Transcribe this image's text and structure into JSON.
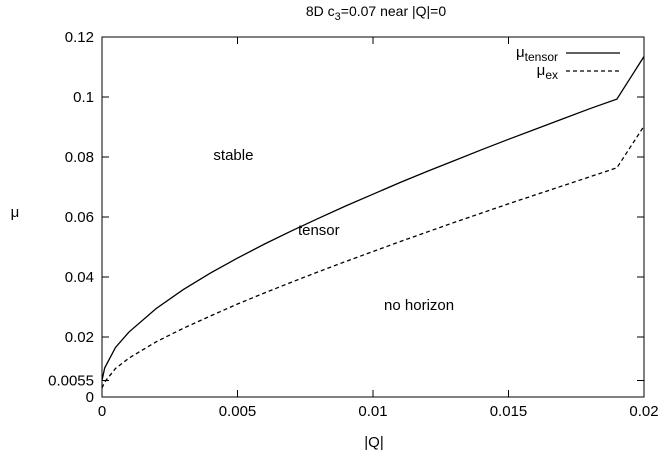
{
  "chart_data": {
    "type": "line",
    "title_parts": {
      "pre": "8D c",
      "sub": "3",
      "post": "=0.07 near |Q|=0"
    },
    "xlabel": "|Q|",
    "ylabel": "μ",
    "xlim": [
      0,
      0.02
    ],
    "ylim": [
      0,
      0.12
    ],
    "x_ticks": [
      {
        "value": 0,
        "label": "0"
      },
      {
        "value": 0.005,
        "label": "0.005"
      },
      {
        "value": 0.01,
        "label": "0.01"
      },
      {
        "value": 0.015,
        "label": "0.015"
      },
      {
        "value": 0.02,
        "label": "0.02"
      }
    ],
    "y_ticks": [
      {
        "value": 0,
        "label": "0"
      },
      {
        "value": 0.0055,
        "label": "0.0055"
      },
      {
        "value": 0.02,
        "label": "0.02"
      },
      {
        "value": 0.04,
        "label": "0.04"
      },
      {
        "value": 0.06,
        "label": "0.06"
      },
      {
        "value": 0.08,
        "label": "0.08"
      },
      {
        "value": 0.1,
        "label": "0.1"
      },
      {
        "value": 0.12,
        "label": "0.12"
      }
    ],
    "grid": false,
    "legend_position": "top-right",
    "series": [
      {
        "name": "μ",
        "name_sub": "tensor",
        "style": "solid",
        "points": [
          [
            0,
            0.0055
          ],
          [
            0.0001,
            0.0097
          ],
          [
            0.0005,
            0.0165
          ],
          [
            0.001,
            0.0217
          ],
          [
            0.002,
            0.0295
          ],
          [
            0.003,
            0.0358
          ],
          [
            0.004,
            0.0413
          ],
          [
            0.005,
            0.0463
          ],
          [
            0.006,
            0.051
          ],
          [
            0.007,
            0.0554
          ],
          [
            0.008,
            0.0596
          ],
          [
            0.009,
            0.0637
          ],
          [
            0.01,
            0.0676
          ],
          [
            0.011,
            0.0715
          ],
          [
            0.012,
            0.0752
          ],
          [
            0.013,
            0.0788
          ],
          [
            0.014,
            0.0824
          ],
          [
            0.015,
            0.0859
          ],
          [
            0.016,
            0.0893
          ],
          [
            0.017,
            0.0927
          ],
          [
            0.018,
            0.0961
          ],
          [
            0.019,
            0.0993
          ],
          [
            0.02,
            0.1135
          ]
        ]
      },
      {
        "name": "μ",
        "name_sub": "ex",
        "style": "dashed",
        "points": [
          [
            0,
            0.003
          ],
          [
            0.0001,
            0.005
          ],
          [
            0.0005,
            0.0095
          ],
          [
            0.001,
            0.013
          ],
          [
            0.002,
            0.0184
          ],
          [
            0.003,
            0.0229
          ],
          [
            0.004,
            0.027
          ],
          [
            0.005,
            0.031
          ],
          [
            0.006,
            0.0347
          ],
          [
            0.007,
            0.0383
          ],
          [
            0.008,
            0.0418
          ],
          [
            0.009,
            0.0452
          ],
          [
            0.01,
            0.0485
          ],
          [
            0.011,
            0.0518
          ],
          [
            0.012,
            0.055
          ],
          [
            0.013,
            0.0582
          ],
          [
            0.014,
            0.0613
          ],
          [
            0.015,
            0.0644
          ],
          [
            0.016,
            0.0674
          ],
          [
            0.017,
            0.0704
          ],
          [
            0.018,
            0.0734
          ],
          [
            0.019,
            0.0764
          ],
          [
            0.02,
            0.0903
          ]
        ]
      }
    ],
    "annotations": [
      {
        "text": "stable",
        "x": 0.00485,
        "y": 0.079
      },
      {
        "text": "tensor",
        "x": 0.008,
        "y": 0.054
      },
      {
        "text": "no horizon",
        "x": 0.0117,
        "y": 0.029
      }
    ]
  }
}
